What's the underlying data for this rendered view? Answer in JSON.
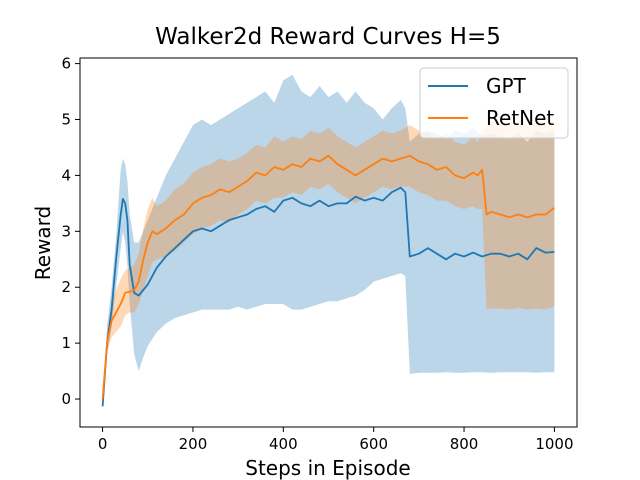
{
  "chart_data": {
    "type": "line",
    "title": "Walker2d Reward Curves H=5",
    "xlabel": "Steps in Episode",
    "ylabel": "Reward",
    "xlim": [
      -50,
      1050
    ],
    "ylim": [
      -0.5,
      6.1
    ],
    "xticks": [
      "0",
      "200",
      "400",
      "600",
      "800",
      "1000"
    ],
    "yticks": [
      "0",
      "1",
      "2",
      "3",
      "4",
      "5",
      "6"
    ],
    "grid": false,
    "legend_position": "top-right",
    "series": [
      {
        "name": "GPT",
        "color": "#1f77b4",
        "band_color": "#1f77b4",
        "x": [
          0,
          10,
          20,
          30,
          40,
          45,
          50,
          55,
          60,
          70,
          80,
          90,
          100,
          120,
          140,
          160,
          180,
          200,
          220,
          240,
          260,
          280,
          300,
          320,
          340,
          360,
          380,
          400,
          420,
          440,
          460,
          480,
          500,
          520,
          540,
          560,
          580,
          600,
          620,
          640,
          660,
          670,
          680,
          700,
          720,
          740,
          760,
          780,
          800,
          820,
          840,
          860,
          880,
          900,
          920,
          940,
          960,
          980,
          1000
        ],
        "mean": [
          -0.13,
          1.0,
          1.6,
          2.5,
          3.3,
          3.58,
          3.5,
          3.2,
          2.4,
          1.9,
          1.85,
          1.95,
          2.05,
          2.35,
          2.55,
          2.7,
          2.85,
          3.0,
          3.05,
          3.0,
          3.1,
          3.2,
          3.25,
          3.3,
          3.4,
          3.45,
          3.35,
          3.55,
          3.6,
          3.5,
          3.45,
          3.55,
          3.45,
          3.5,
          3.5,
          3.62,
          3.55,
          3.6,
          3.55,
          3.7,
          3.78,
          3.7,
          2.55,
          2.6,
          2.7,
          2.6,
          2.5,
          2.6,
          2.55,
          2.62,
          2.55,
          2.6,
          2.6,
          2.55,
          2.6,
          2.5,
          2.7,
          2.62,
          2.63
        ],
        "lower": [
          -0.13,
          0.8,
          1.3,
          2.0,
          2.7,
          3.0,
          2.8,
          2.4,
          1.7,
          0.8,
          0.5,
          0.75,
          0.95,
          1.2,
          1.35,
          1.45,
          1.5,
          1.55,
          1.6,
          1.6,
          1.6,
          1.6,
          1.65,
          1.6,
          1.65,
          1.7,
          1.7,
          1.7,
          1.6,
          1.6,
          1.65,
          1.7,
          1.75,
          1.75,
          1.8,
          1.85,
          1.95,
          2.1,
          2.15,
          2.2,
          2.25,
          2.2,
          0.45,
          0.47,
          0.47,
          0.47,
          0.48,
          0.47,
          0.47,
          0.48,
          0.48,
          0.47,
          0.48,
          0.48,
          0.48,
          0.48,
          0.47,
          0.48,
          0.48
        ],
        "upper": [
          -0.13,
          1.3,
          2.0,
          2.9,
          4.1,
          4.3,
          4.2,
          3.9,
          3.3,
          2.8,
          2.8,
          3.0,
          3.2,
          3.6,
          4.0,
          4.3,
          4.6,
          4.9,
          5.0,
          4.9,
          5.0,
          5.1,
          5.2,
          5.3,
          5.4,
          5.5,
          5.3,
          5.7,
          5.8,
          5.5,
          5.4,
          5.6,
          5.4,
          5.5,
          5.3,
          5.5,
          5.3,
          5.2,
          5.0,
          5.2,
          5.35,
          5.2,
          4.6,
          4.75,
          4.8,
          4.75,
          4.65,
          4.8,
          4.75,
          4.85,
          4.7,
          4.75,
          4.7,
          4.65,
          4.75,
          4.6,
          4.8,
          4.75,
          4.8
        ]
      },
      {
        "name": "RetNet",
        "color": "#ff7f0e",
        "band_color": "#ff7f0e",
        "x": [
          0,
          10,
          20,
          30,
          40,
          50,
          60,
          70,
          80,
          90,
          100,
          110,
          120,
          140,
          160,
          180,
          200,
          220,
          240,
          260,
          280,
          300,
          320,
          340,
          360,
          380,
          400,
          420,
          440,
          460,
          480,
          500,
          520,
          540,
          560,
          580,
          600,
          620,
          640,
          660,
          680,
          700,
          720,
          740,
          760,
          780,
          800,
          820,
          830,
          840,
          850,
          860,
          880,
          900,
          920,
          940,
          960,
          980,
          1000
        ],
        "mean": [
          0.0,
          1.0,
          1.4,
          1.55,
          1.7,
          1.9,
          1.92,
          1.95,
          2.1,
          2.5,
          2.8,
          3.0,
          2.95,
          3.05,
          3.2,
          3.3,
          3.5,
          3.6,
          3.65,
          3.75,
          3.7,
          3.8,
          3.9,
          4.05,
          4.0,
          4.15,
          4.1,
          4.2,
          4.15,
          4.3,
          4.25,
          4.35,
          4.2,
          4.1,
          4.0,
          4.1,
          4.2,
          4.3,
          4.25,
          4.3,
          4.35,
          4.25,
          4.2,
          4.1,
          4.15,
          4.0,
          3.95,
          4.05,
          4.0,
          4.1,
          3.3,
          3.35,
          3.3,
          3.25,
          3.3,
          3.25,
          3.3,
          3.3,
          3.42
        ],
        "lower": [
          0.0,
          0.85,
          1.1,
          1.2,
          1.3,
          1.5,
          1.55,
          1.55,
          1.7,
          1.95,
          2.2,
          2.45,
          2.5,
          2.55,
          2.65,
          2.8,
          2.95,
          3.05,
          3.1,
          3.2,
          3.15,
          3.3,
          3.4,
          3.55,
          3.5,
          3.6,
          3.6,
          3.7,
          3.65,
          3.8,
          3.75,
          3.85,
          3.7,
          3.6,
          3.5,
          3.6,
          3.7,
          3.8,
          3.75,
          3.8,
          3.8,
          3.7,
          3.65,
          3.55,
          3.55,
          3.45,
          3.4,
          3.45,
          3.4,
          3.4,
          1.6,
          1.62,
          1.62,
          1.6,
          1.63,
          1.6,
          1.62,
          1.6,
          1.65
        ],
        "upper": [
          0.0,
          1.2,
          1.75,
          1.95,
          2.15,
          2.3,
          2.35,
          2.4,
          2.6,
          3.05,
          3.4,
          3.6,
          3.45,
          3.55,
          3.75,
          3.85,
          4.05,
          4.15,
          4.2,
          4.3,
          4.25,
          4.3,
          4.4,
          4.55,
          4.5,
          4.7,
          4.6,
          4.7,
          4.65,
          4.8,
          4.75,
          4.85,
          4.7,
          4.6,
          4.5,
          4.6,
          4.7,
          4.8,
          4.75,
          4.8,
          4.9,
          4.8,
          4.75,
          4.65,
          4.75,
          4.6,
          4.55,
          4.7,
          4.6,
          4.8,
          4.9,
          4.95,
          4.95,
          4.9,
          4.95,
          4.9,
          4.95,
          4.95,
          5.0
        ]
      }
    ]
  }
}
